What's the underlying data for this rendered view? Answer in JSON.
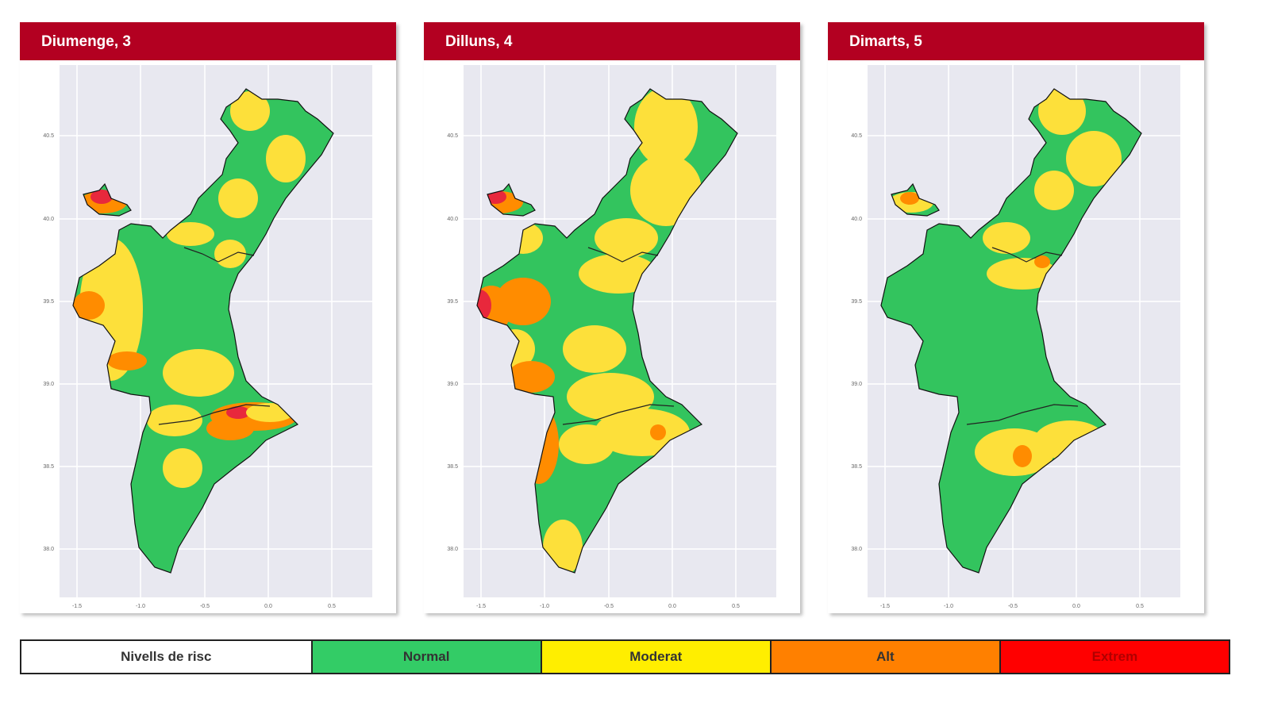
{
  "panels": [
    {
      "title": "Diumenge, 3"
    },
    {
      "title": "Dilluns, 4"
    },
    {
      "title": "Dimarts, 5"
    }
  ],
  "axes": {
    "x_ticks": [
      "-1.5",
      "-1.0",
      "-0.5",
      "0.0",
      "0.5"
    ],
    "y_ticks": [
      "40.5",
      "40.0",
      "39.5",
      "39.0",
      "38.5",
      "38.0"
    ]
  },
  "legend": {
    "title": "Nivells de risc",
    "levels": [
      {
        "label": "Normal",
        "color": "#33cc66"
      },
      {
        "label": "Moderat",
        "color": "#ffee00"
      },
      {
        "label": "Alt",
        "color": "#ff8000"
      },
      {
        "label": "Extrem",
        "color": "#ff0000"
      }
    ]
  },
  "colors": {
    "header": "#b30021",
    "plot_bg": "#e8e8f0"
  }
}
